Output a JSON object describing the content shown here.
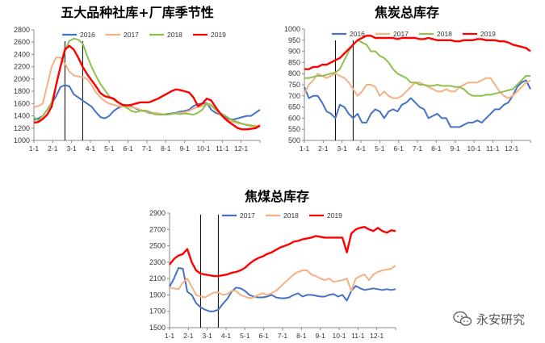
{
  "chart_data": [
    {
      "type": "line",
      "title": "五大品种社库+厂库季节性",
      "x_ticks": [
        "1-1",
        "2-1",
        "3-1",
        "4-1",
        "5-1",
        "6-1",
        "7-1",
        "8-1",
        "9-1",
        "10-1",
        "11-1",
        "12-1"
      ],
      "ylim": [
        1000,
        2800
      ],
      "y_ticks": [
        "1000",
        "1200",
        "1400",
        "1600",
        "1800",
        "2000",
        "2200",
        "2400",
        "2600",
        "2800"
      ],
      "legend": "top",
      "grid": false,
      "vlines_week": [
        7,
        11
      ],
      "series": [
        {
          "name": "2016",
          "color": "#4472c4",
          "values": [
            1330,
            1360,
            1400,
            1500,
            1600,
            1720,
            1870,
            1900,
            1880,
            1750,
            1700,
            1650,
            1600,
            1550,
            1460,
            1380,
            1360,
            1400,
            1480,
            1530,
            1560,
            1560,
            1550,
            1520,
            1490,
            1470,
            1450,
            1440,
            1420,
            1420,
            1430,
            1440,
            1450,
            1470,
            1480,
            1500,
            1560,
            1590,
            1600,
            1610,
            1500,
            1450,
            1420,
            1380,
            1350,
            1340,
            1360,
            1380,
            1400,
            1400,
            1450,
            1500
          ]
        },
        {
          "name": "2017",
          "color": "#f4b183",
          "values": [
            1540,
            1560,
            1600,
            1900,
            2200,
            2350,
            2350,
            2250,
            2120,
            2060,
            2040,
            2030,
            2000,
            1900,
            1780,
            1700,
            1640,
            1600,
            1580,
            1560,
            1550,
            1550,
            1540,
            1530,
            1500,
            1470,
            1460,
            1450,
            1440,
            1430,
            1420,
            1430,
            1440,
            1450,
            1460,
            1480,
            1520,
            1540,
            1560,
            1600,
            1560,
            1500,
            1420,
            1360,
            1320,
            1300,
            1280,
            1270,
            1260,
            1250,
            1240,
            1230
          ]
        },
        {
          "name": "2018",
          "color": "#8fc04f",
          "values": [
            1380,
            1320,
            1400,
            1500,
            1620,
            1900,
            2200,
            2450,
            2620,
            2660,
            2640,
            2580,
            2380,
            2200,
            2050,
            1920,
            1820,
            1720,
            1660,
            1620,
            1570,
            1530,
            1480,
            1460,
            1480,
            1490,
            1470,
            1430,
            1420,
            1420,
            1420,
            1430,
            1440,
            1430,
            1440,
            1430,
            1420,
            1450,
            1500,
            1600,
            1580,
            1500,
            1450,
            1410,
            1360,
            1320,
            1300,
            1270,
            1250,
            1240,
            1220,
            1250
          ]
        },
        {
          "name": "2019",
          "color": "#ff0000",
          "values": [
            1290,
            1300,
            1350,
            1420,
            1550,
            1900,
            2200,
            2480,
            2540,
            2480,
            2350,
            2200,
            2080,
            1980,
            1880,
            1770,
            1720,
            1700,
            1680,
            1620,
            1580,
            1570,
            1580,
            1600,
            1620,
            1620,
            1620,
            1650,
            1680,
            1720,
            1760,
            1800,
            1830,
            1820,
            1800,
            1780,
            1700,
            1560,
            1600,
            1680,
            1650,
            1540,
            1440,
            1360,
            1300,
            1250,
            1200,
            1180,
            1180,
            1190,
            1200,
            1240
          ]
        }
      ]
    },
    {
      "type": "line",
      "title": "焦炭总库存",
      "x_ticks": [
        "1-1",
        "2-1",
        "3-1",
        "4-1",
        "5-1",
        "6-1",
        "7-1",
        "8-1",
        "9-1",
        "10-1",
        "11-1",
        "12-1"
      ],
      "ylim": [
        500,
        1000
      ],
      "y_ticks": [
        "500",
        "550",
        "600",
        "650",
        "700",
        "750",
        "800",
        "850",
        "900",
        "950",
        "1000"
      ],
      "legend": "top",
      "grid": false,
      "vlines_week": [
        7,
        11
      ],
      "series": [
        {
          "name": "2016",
          "color": "#4472c4",
          "values": [
            740,
            690,
            700,
            700,
            670,
            630,
            620,
            600,
            660,
            650,
            620,
            600,
            620,
            580,
            580,
            620,
            640,
            630,
            600,
            630,
            640,
            630,
            660,
            670,
            690,
            670,
            650,
            640,
            600,
            610,
            620,
            600,
            600,
            560,
            560,
            560,
            570,
            580,
            580,
            590,
            580,
            600,
            620,
            640,
            640,
            660,
            670,
            700,
            740,
            760,
            770,
            730
          ]
        },
        {
          "name": "2017",
          "color": "#f4b183",
          "values": [
            710,
            750,
            770,
            800,
            790,
            780,
            790,
            800,
            790,
            780,
            760,
            730,
            700,
            720,
            750,
            750,
            740,
            700,
            720,
            700,
            690,
            690,
            700,
            720,
            740,
            760,
            760,
            750,
            740,
            730,
            720,
            720,
            730,
            720,
            720,
            740,
            750,
            760,
            760,
            760,
            770,
            780,
            780,
            750,
            720,
            700,
            690,
            700,
            720,
            740,
            760,
            770
          ]
        },
        {
          "name": "2018",
          "color": "#8fc04f",
          "values": [
            780,
            780,
            785,
            790,
            790,
            795,
            800,
            805,
            820,
            860,
            900,
            930,
            950,
            940,
            930,
            900,
            900,
            880,
            870,
            850,
            820,
            800,
            790,
            780,
            760,
            760,
            750,
            750,
            745,
            745,
            750,
            745,
            745,
            745,
            740,
            740,
            730,
            710,
            700,
            700,
            700,
            705,
            705,
            710,
            715,
            720,
            725,
            730,
            750,
            770,
            790,
            790
          ]
        },
        {
          "name": "2019",
          "color": "#ff0000",
          "values": [
            820,
            820,
            830,
            830,
            840,
            840,
            850,
            860,
            870,
            890,
            910,
            930,
            950,
            960,
            970,
            970,
            960,
            960,
            960,
            960,
            960,
            955,
            960,
            960,
            960,
            960,
            955,
            955,
            960,
            955,
            950,
            950,
            950,
            950,
            945,
            945,
            950,
            950,
            950,
            955,
            955,
            950,
            950,
            950,
            945,
            945,
            940,
            930,
            925,
            920,
            915,
            900
          ]
        }
      ]
    },
    {
      "type": "line",
      "title": "焦煤总库存",
      "x_ticks": [
        "1-1",
        "2-1",
        "3-1",
        "4-1",
        "5-1",
        "6-1",
        "7-1",
        "8-1",
        "9-1",
        "10-1",
        "11-1",
        "12-1"
      ],
      "ylim": [
        1500,
        2900
      ],
      "y_ticks": [
        "1500",
        "1700",
        "1900",
        "2100",
        "2300",
        "2500",
        "2700",
        "2900"
      ],
      "legend": "top",
      "grid": false,
      "vlines_week": [
        7,
        11
      ],
      "series": [
        {
          "name": "2017",
          "color": "#4472c4",
          "values": [
            2000,
            2100,
            2230,
            2220,
            1940,
            1900,
            1800,
            1750,
            1720,
            1700,
            1700,
            1720,
            1790,
            1850,
            1940,
            1990,
            1980,
            1950,
            1900,
            1880,
            1870,
            1870,
            1880,
            1900,
            1870,
            1860,
            1860,
            1870,
            1900,
            1920,
            1880,
            1900,
            1900,
            1890,
            1880,
            1880,
            1900,
            1910,
            1880,
            1900,
            1830,
            1950,
            2010,
            1980,
            1960,
            1970,
            1980,
            1970,
            1960,
            1970,
            1960,
            1970
          ]
        },
        {
          "name": "2018",
          "color": "#f4b183",
          "values": [
            1990,
            1980,
            1970,
            2050,
            2100,
            2000,
            1900,
            1880,
            1870,
            1900,
            1930,
            1930,
            1900,
            1910,
            1950,
            1950,
            1900,
            1880,
            1860,
            1870,
            1900,
            1920,
            1900,
            1920,
            1950,
            2000,
            2050,
            2100,
            2150,
            2180,
            2200,
            2200,
            2150,
            2130,
            2100,
            2080,
            2100,
            2060,
            2070,
            2080,
            2100,
            1950,
            2100,
            2130,
            2150,
            2080,
            2150,
            2180,
            2200,
            2210,
            2220,
            2260
          ]
        },
        {
          "name": "2019",
          "color": "#ff0000",
          "values": [
            2270,
            2340,
            2380,
            2400,
            2460,
            2300,
            2200,
            2160,
            2150,
            2140,
            2130,
            2130,
            2140,
            2150,
            2170,
            2180,
            2200,
            2230,
            2280,
            2320,
            2350,
            2370,
            2400,
            2420,
            2450,
            2480,
            2500,
            2520,
            2550,
            2560,
            2580,
            2590,
            2600,
            2620,
            2610,
            2600,
            2600,
            2600,
            2600,
            2600,
            2420,
            2650,
            2700,
            2720,
            2730,
            2700,
            2680,
            2720,
            2680,
            2660,
            2690,
            2680
          ]
        }
      ]
    }
  ],
  "watermark": {
    "text": "永安研究",
    "icon": "chat-bubble-icon"
  }
}
